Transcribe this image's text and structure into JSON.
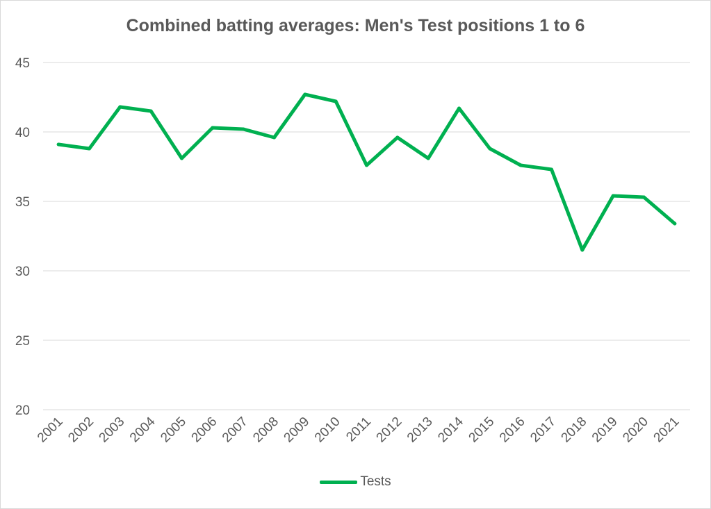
{
  "chart_data": {
    "type": "line",
    "title": "Combined batting averages: Men's Test positions 1 to 6",
    "xlabel": "",
    "ylabel": "",
    "categories": [
      "2001",
      "2002",
      "2003",
      "2004",
      "2005",
      "2006",
      "2007",
      "2008",
      "2009",
      "2010",
      "2011",
      "2012",
      "2013",
      "2014",
      "2015",
      "2016",
      "2017",
      "2018",
      "2019",
      "2020",
      "2021"
    ],
    "series": [
      {
        "name": "Tests",
        "color": "#00b050",
        "values": [
          39.1,
          38.8,
          41.8,
          41.5,
          38.1,
          40.3,
          40.2,
          39.6,
          42.7,
          42.2,
          37.6,
          39.6,
          38.1,
          41.7,
          38.8,
          37.6,
          37.3,
          31.5,
          35.4,
          35.3,
          33.4
        ]
      }
    ],
    "ylim": [
      20,
      45
    ],
    "yticks": [
      20,
      25,
      30,
      35,
      40,
      45
    ],
    "grid": true,
    "legend_position": "bottom"
  }
}
